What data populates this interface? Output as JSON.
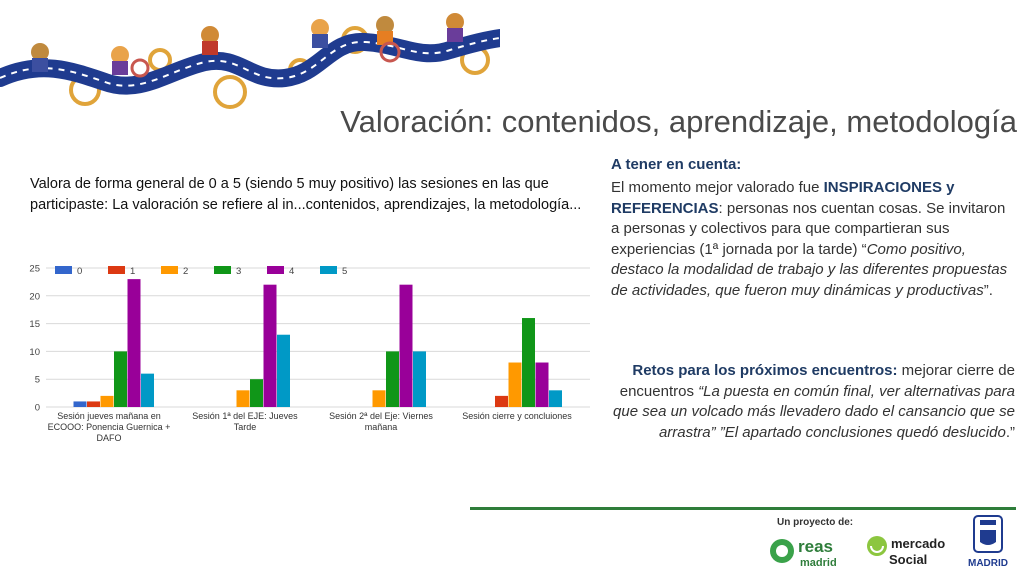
{
  "title": "Valoración: contenidos, aprendizaje, metodología",
  "colors": {
    "navy": "#1f3b64",
    "series": [
      "#3366cc",
      "#dc3912",
      "#ff9900",
      "#109618",
      "#990099",
      "#0099c6"
    ]
  },
  "chart_data": {
    "type": "bar",
    "title": "Valora de forma general de 0 a 5  (siendo 5 muy positivo) las sesiones en las que participaste: La valoración se refiere al in...contenidos, aprendizajes, la metodología...",
    "categories": [
      [
        "Sesión jueves mañana en",
        "ECOOO: Ponencia Guernica +",
        "DAFO"
      ],
      [
        "Sesión 1ª del EJE: Jueves",
        "Tarde"
      ],
      [
        "Sesión 2ª del Eje: Viernes",
        "mañana"
      ],
      [
        "Sesión cierre y concluiones"
      ]
    ],
    "series": [
      {
        "name": "0",
        "values": [
          1,
          0,
          0,
          0
        ]
      },
      {
        "name": "1",
        "values": [
          1,
          0,
          0,
          2
        ]
      },
      {
        "name": "2",
        "values": [
          2,
          3,
          3,
          8
        ]
      },
      {
        "name": "3",
        "values": [
          10,
          5,
          10,
          16
        ]
      },
      {
        "name": "4",
        "values": [
          23,
          22,
          22,
          8
        ]
      },
      {
        "name": "5",
        "values": [
          6,
          13,
          10,
          3
        ]
      }
    ],
    "ylim": [
      0,
      25
    ],
    "yticks": [
      "0",
      "5",
      "10",
      "15",
      "20",
      "25"
    ],
    "legend": "top-left",
    "grid": true
  },
  "notes": {
    "heading": "A tener en cuenta:",
    "p1_a": "El momento mejor valorado fue ",
    "p1_b": "INSPIRACIONES y REFERENCIAS",
    "p1_c": ": personas nos cuentan cosas. Se invitaron a personas y colectivos  para que compartieran sus experiencias (1ª jornada por la tarde) “",
    "p1_d": "Como positivo, destaco la modalidad de trabajo y las diferentes propuestas de actividades, que fueron muy dinámicas y productivas",
    "p1_e": "”."
  },
  "retos": {
    "a": "Retos para los próximos encuentros:",
    "b": " mejorar cierre de encuentros ",
    "c": "“La puesta en común final, ver alternativas para que sea un volcado más llevadero dado el cansancio que se arrastra” ”El apartado conclusiones quedó deslucido",
    "d": ".”"
  },
  "footer": {
    "caption": "Un proyecto de:",
    "reas_1": "reas",
    "reas_2": "madrid",
    "mercado_1": "mercado",
    "mercado_2": "Social",
    "madrid": "MADRID"
  }
}
